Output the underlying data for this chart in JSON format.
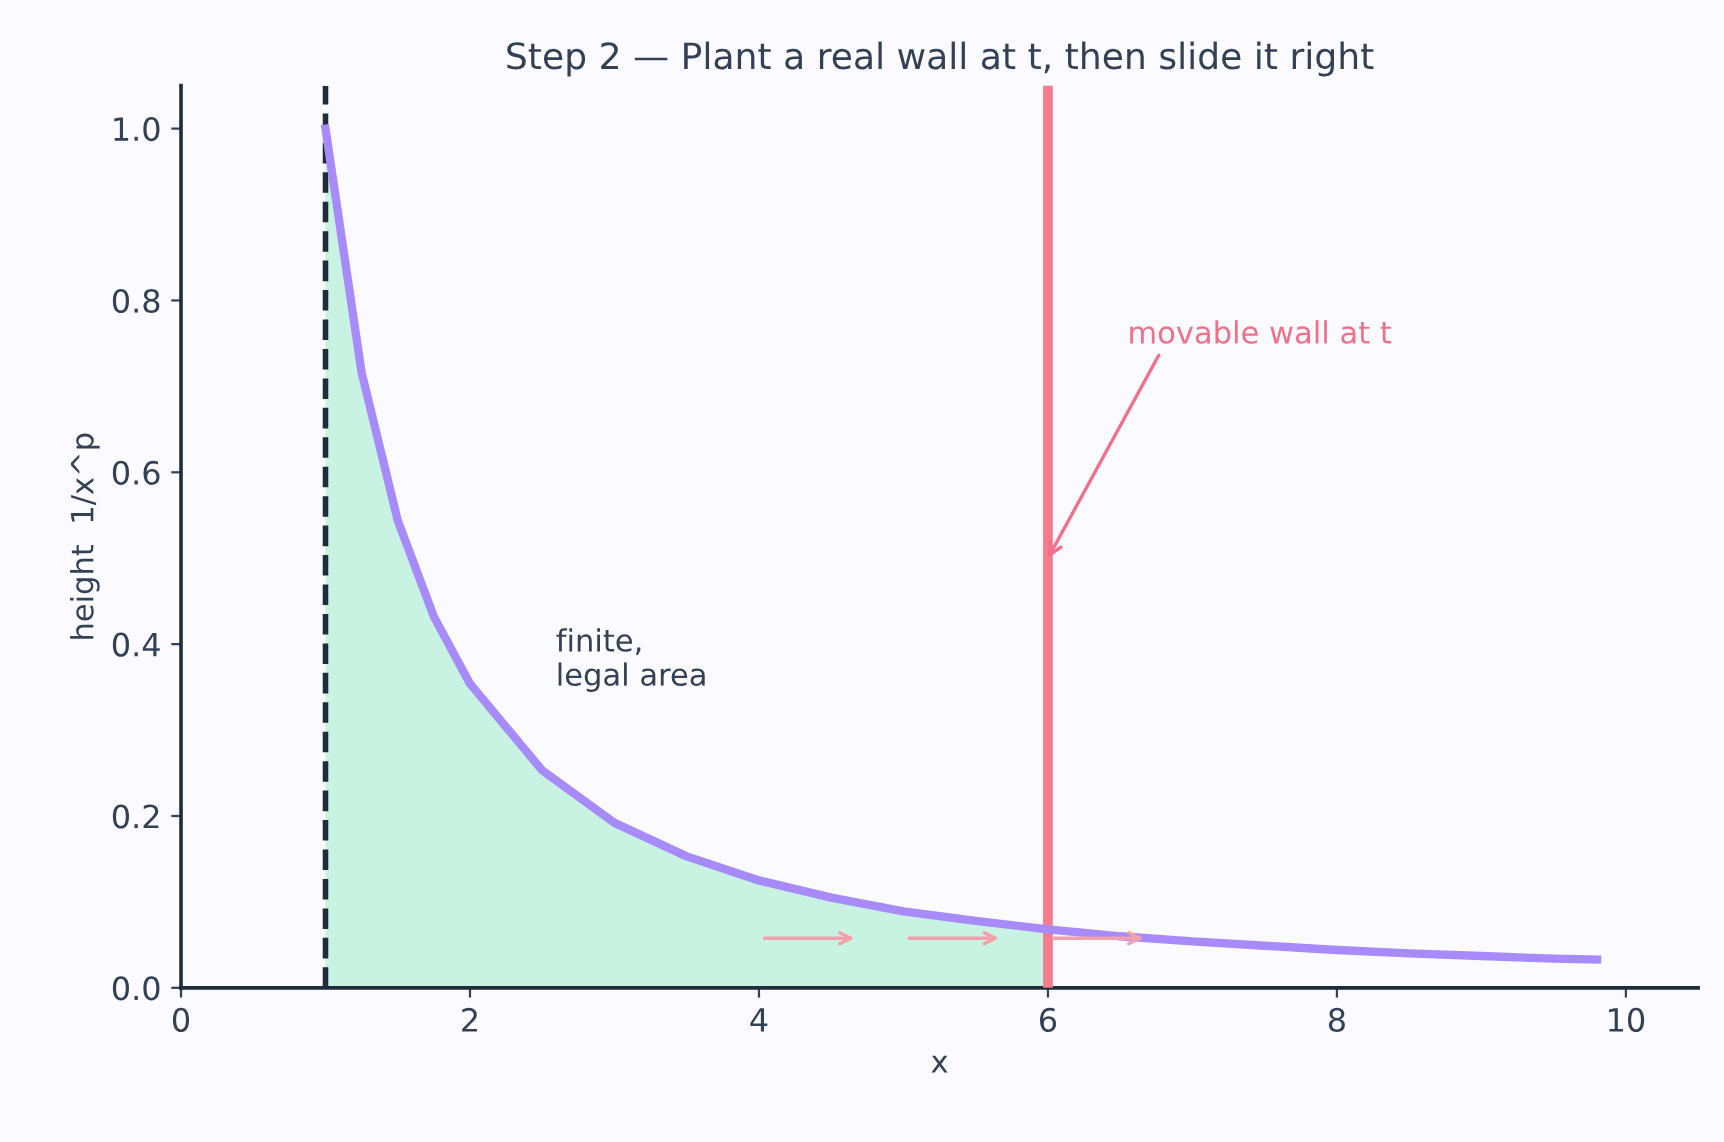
{
  "chart_data": {
    "type": "line",
    "title": "Step 2 — Plant a real wall at t, then slide it right",
    "xlabel": "x",
    "ylabel": "height  1/x^p",
    "series": [
      {
        "type": "area",
        "color": "#c8f2e1",
        "x": [
          1,
          1.25,
          1.5,
          1.75,
          2,
          2.5,
          3,
          3.5,
          4,
          4.5,
          5,
          5.5,
          6
        ],
        "values": [
          1.0,
          0.716,
          0.544,
          0.432,
          0.354,
          0.253,
          0.192,
          0.153,
          0.125,
          0.105,
          0.089,
          0.078,
          0.068
        ]
      },
      {
        "color": "#a78bfa",
        "x": [
          1,
          1.25,
          1.5,
          1.75,
          2,
          2.5,
          3,
          3.5,
          4,
          4.5,
          5,
          5.5,
          6,
          6.5,
          7,
          7.5,
          8,
          8.5,
          9,
          9.5,
          9.8
        ],
        "values": [
          1.0,
          0.716,
          0.544,
          0.432,
          0.354,
          0.253,
          0.192,
          0.153,
          0.125,
          0.105,
          0.089,
          0.078,
          0.068,
          0.06,
          0.054,
          0.049,
          0.044,
          0.04,
          0.037,
          0.034,
          0.033
        ]
      }
    ],
    "ref_lines": [
      {
        "axis": "x",
        "value": 1,
        "color": "#1f2d3a",
        "line_style": "dashed"
      },
      {
        "axis": "x",
        "value": 6,
        "color": "#f47c8c",
        "line_style": "solid"
      }
    ],
    "annotations": [
      {
        "text": "movable wall at t",
        "x": 6,
        "y": 0.5
      },
      "finite,\nlegal area"
    ],
    "xlim": [
      0,
      10.5
    ],
    "ylim": [
      0,
      1.05
    ],
    "xticks": [
      0,
      2,
      4,
      6,
      8,
      10
    ],
    "yticks": [
      {
        "value": 0,
        "label": "0.0"
      },
      0.2,
      0.4,
      0.6,
      0.8,
      {
        "value": 1,
        "label": "1.0"
      }
    ],
    "grid": false,
    "legend": false
  }
}
